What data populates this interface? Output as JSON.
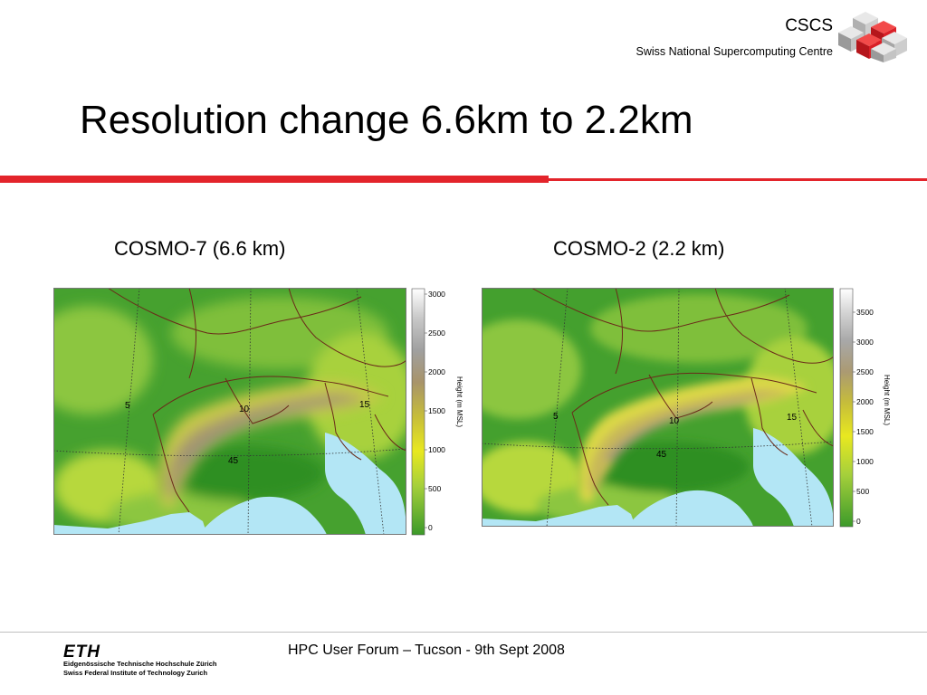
{
  "header": {
    "org_abbr": "CSCS",
    "org_name": "Swiss National Supercomputing Centre",
    "logo_icon": "cscs-cube-logo-icon"
  },
  "title": "Resolution change 6.6km to 2.2km",
  "colors": {
    "accent_red": "#e3242b",
    "sea": "#b3e6f5",
    "terrain_low": "#3c9a2a",
    "terrain_high": "#ffffff"
  },
  "left_panel": {
    "caption": "COSMO-7 (6.6 km)",
    "map_labels": {
      "lon_west": "5",
      "lon_center": "10",
      "lon_east": "15",
      "lat": "45"
    },
    "colorbar": {
      "ticks": [
        "3000",
        "2500",
        "2000",
        "1500",
        "1000",
        "500",
        "0"
      ],
      "label": "Height (m MSL)"
    }
  },
  "right_panel": {
    "caption": "COSMO-2 (2.2 km)",
    "map_labels": {
      "lon_west": "5",
      "lon_center": "10",
      "lon_east": "15",
      "lat": "45"
    },
    "colorbar": {
      "ticks": [
        "3500",
        "3000",
        "2500",
        "2000",
        "1500",
        "1000",
        "500",
        "0"
      ],
      "label": "Height (m MSL)"
    }
  },
  "footer": {
    "eth_logo": "ETH",
    "eth_line1": "Eidgenössische Technische Hochschule Zürich",
    "eth_line2": "Swiss Federal Institute of Technology Zurich",
    "event_text": "HPC User Forum – Tucson - 9th Sept 2008"
  }
}
